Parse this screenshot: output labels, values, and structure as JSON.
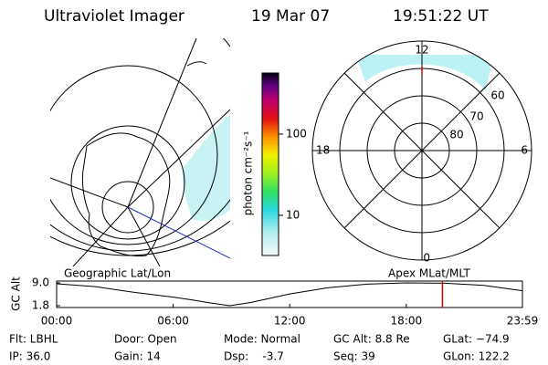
{
  "header": {
    "instrument": "Ultraviolet Imager",
    "date": "19 Mar 07",
    "time": "19:51:22 UT"
  },
  "left_map_label": "Geographic Lat/Lon",
  "right_map_label": "Apex MLat/MLT",
  "polar": {
    "mlt_labels": [
      12,
      18,
      6,
      0
    ],
    "mlat_labels": [
      60,
      70,
      80
    ]
  },
  "colorbar": {
    "label": "photon cm⁻²s⁻¹",
    "lim": [
      3.2,
      565
    ],
    "ticks": [
      10,
      100
    ],
    "log": true
  },
  "chart_data": {
    "type": "line",
    "y_label": "GC Alt",
    "x": [
      0,
      2,
      4,
      6,
      7,
      8,
      8.9,
      10,
      12,
      14,
      16,
      18,
      20,
      22,
      23.98
    ],
    "series": [
      {
        "color": "#000000",
        "values": [
          8.7,
          7.8,
          6.0,
          4.5,
          3.6,
          2.6,
          1.8,
          2.8,
          5.5,
          7.5,
          8.6,
          9.0,
          8.9,
          8.2,
          6.5
        ]
      }
    ],
    "xlim": [
      0,
      23.98
    ],
    "xticks": [
      {
        "value": 0,
        "label": "00:00"
      },
      {
        "value": 6,
        "label": "06:00"
      },
      {
        "value": 12,
        "label": "12:00"
      },
      {
        "value": 18,
        "label": "18:00"
      },
      {
        "value": 23.98,
        "label": "23:59"
      }
    ],
    "ylim": [
      1.8,
      9.0
    ],
    "yticks": [
      {
        "value": 9.0,
        "label": "9.0"
      },
      1.8
    ],
    "marker": {
      "x": 19.86,
      "color": "#dd0000"
    }
  },
  "footer": {
    "rows": [
      [
        "Flt: LBHL",
        "Door: Open",
        "Mode: Normal",
        "GC Alt: 8.8 Re",
        "GLat: −74.9"
      ],
      [
        "IP: 36.0",
        "Gain: 14",
        "Dsp:    -3.7",
        "Seq: 39",
        "GLon: 122.2"
      ]
    ]
  }
}
